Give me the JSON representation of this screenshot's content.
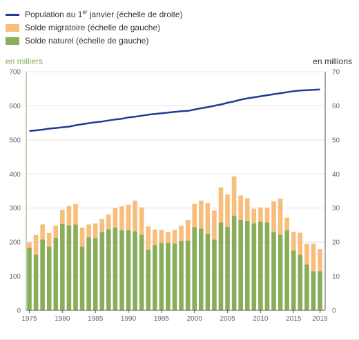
{
  "legend": {
    "population_label_before": "Population au 1",
    "population_label_sup": "er",
    "population_label_after": " janvier (échelle de droite)",
    "migratoire_label": "Solde migratoire (échelle de gauche)",
    "naturel_label": "Solde naturel (échelle de gauche)"
  },
  "axis_units": {
    "left": "en milliers",
    "right": "en millions"
  },
  "colors": {
    "population": "#1f3a93",
    "migratoire": "#f9bd7c",
    "naturel": "#8aad5b",
    "left_axis_text": "#8aad5b"
  },
  "chart_data": {
    "type": "bar",
    "stacked": true,
    "x": [
      1975,
      1976,
      1977,
      1978,
      1979,
      1980,
      1981,
      1982,
      1983,
      1984,
      1985,
      1986,
      1987,
      1988,
      1989,
      1990,
      1991,
      1992,
      1993,
      1994,
      1995,
      1996,
      1997,
      1998,
      1999,
      2000,
      2001,
      2002,
      2003,
      2004,
      2005,
      2006,
      2007,
      2008,
      2009,
      2010,
      2011,
      2012,
      2013,
      2014,
      2015,
      2016,
      2017,
      2018,
      2019
    ],
    "x_ticks": [
      1975,
      1980,
      1985,
      1990,
      1995,
      2000,
      2005,
      2010,
      2015,
      2019
    ],
    "left_axis": {
      "range": [
        0,
        700
      ],
      "ticks": [
        0,
        100,
        200,
        300,
        400,
        500,
        600,
        700
      ]
    },
    "right_axis": {
      "range": [
        0,
        70
      ],
      "ticks": [
        0,
        10,
        20,
        30,
        40,
        50,
        60,
        70
      ]
    },
    "series": [
      {
        "name": "Solde naturel (échelle de gauche)",
        "type": "bar",
        "axis": "left",
        "values": [
          183,
          163,
          208,
          187,
          213,
          253,
          249,
          252,
          187,
          214,
          212,
          230,
          238,
          243,
          235,
          235,
          232,
          222,
          178,
          192,
          198,
          198,
          196,
          203,
          205,
          244,
          240,
          225,
          208,
          258,
          245,
          278,
          265,
          262,
          255,
          260,
          258,
          230,
          222,
          235,
          175,
          163,
          135,
          115,
          115
        ]
      },
      {
        "name": "Solde migratoire (échelle de gauche)",
        "type": "bar_stacked",
        "axis": "left",
        "values": [
          16,
          58,
          44,
          40,
          36,
          42,
          57,
          60,
          56,
          38,
          43,
          38,
          43,
          57,
          70,
          75,
          90,
          80,
          68,
          45,
          38,
          32,
          40,
          45,
          60,
          68,
          82,
          90,
          85,
          103,
          95,
          115,
          72,
          67,
          43,
          42,
          43,
          90,
          106,
          37,
          55,
          65,
          60,
          80,
          65
        ]
      },
      {
        "name": "Population au 1er janvier (échelle de droite)",
        "type": "line",
        "axis": "right",
        "values": [
          52.6,
          52.8,
          53.0,
          53.3,
          53.5,
          53.7,
          53.9,
          54.3,
          54.6,
          54.9,
          55.2,
          55.4,
          55.7,
          56.0,
          56.2,
          56.6,
          56.8,
          57.1,
          57.4,
          57.6,
          57.8,
          58.0,
          58.2,
          58.4,
          58.5,
          58.9,
          59.3,
          59.6,
          60.0,
          60.4,
          60.9,
          61.3,
          61.8,
          62.2,
          62.5,
          62.8,
          63.1,
          63.4,
          63.7,
          64.0,
          64.3,
          64.5,
          64.6,
          64.7,
          64.8
        ]
      }
    ]
  }
}
